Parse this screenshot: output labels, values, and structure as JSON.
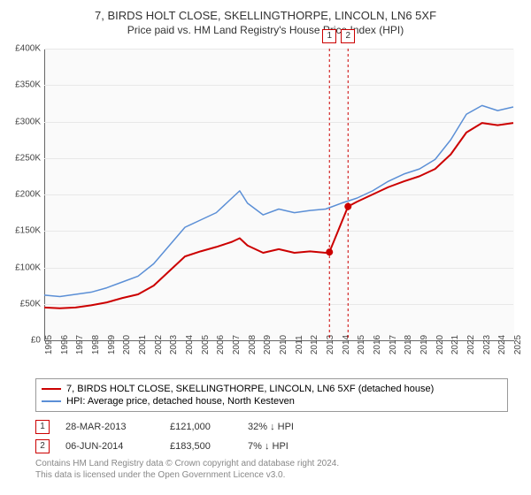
{
  "title_line1": "7, BIRDS HOLT CLOSE, SKELLINGTHORPE, LINCOLN, LN6 5XF",
  "title_line2": "Price paid vs. HM Land Registry's House Price Index (HPI)",
  "chart": {
    "type": "line",
    "background_color": "#fafafa",
    "grid_color": "#e8e8e8",
    "ylim": [
      0,
      400000
    ],
    "ytick_step": 50000,
    "yticks": [
      "£0",
      "£50K",
      "£100K",
      "£150K",
      "£200K",
      "£250K",
      "£300K",
      "£350K",
      "£400K"
    ],
    "xlim": [
      1995,
      2025
    ],
    "xticks": [
      1995,
      1996,
      1997,
      1998,
      1999,
      2000,
      2001,
      2002,
      2003,
      2004,
      2005,
      2006,
      2007,
      2008,
      2009,
      2010,
      2011,
      2012,
      2013,
      2014,
      2015,
      2016,
      2017,
      2018,
      2019,
      2020,
      2021,
      2022,
      2023,
      2024,
      2025
    ],
    "series": [
      {
        "id": "property",
        "label": "7, BIRDS HOLT CLOSE, SKELLINGTHORPE, LINCOLN, LN6 5XF (detached house)",
        "color": "#cc0000",
        "line_width": 2,
        "points": [
          [
            1995,
            45000
          ],
          [
            1996,
            44000
          ],
          [
            1997,
            45000
          ],
          [
            1998,
            48000
          ],
          [
            1999,
            52000
          ],
          [
            2000,
            58000
          ],
          [
            2001,
            63000
          ],
          [
            2002,
            75000
          ],
          [
            2003,
            95000
          ],
          [
            2004,
            115000
          ],
          [
            2005,
            122000
          ],
          [
            2006,
            128000
          ],
          [
            2007,
            135000
          ],
          [
            2007.5,
            140000
          ],
          [
            2008,
            130000
          ],
          [
            2009,
            120000
          ],
          [
            2010,
            125000
          ],
          [
            2011,
            120000
          ],
          [
            2012,
            122000
          ],
          [
            2013,
            120000
          ],
          [
            2013.24,
            121000
          ],
          [
            2014.43,
            183500
          ],
          [
            2015,
            190000
          ],
          [
            2016,
            200000
          ],
          [
            2017,
            210000
          ],
          [
            2018,
            218000
          ],
          [
            2019,
            225000
          ],
          [
            2020,
            235000
          ],
          [
            2021,
            255000
          ],
          [
            2022,
            285000
          ],
          [
            2023,
            298000
          ],
          [
            2024,
            295000
          ],
          [
            2025,
            298000
          ]
        ]
      },
      {
        "id": "hpi",
        "label": "HPI: Average price, detached house, North Kesteven",
        "color": "#5b8fd6",
        "line_width": 1.5,
        "points": [
          [
            1995,
            62000
          ],
          [
            1996,
            60000
          ],
          [
            1997,
            63000
          ],
          [
            1998,
            66000
          ],
          [
            1999,
            72000
          ],
          [
            2000,
            80000
          ],
          [
            2001,
            88000
          ],
          [
            2002,
            105000
          ],
          [
            2003,
            130000
          ],
          [
            2004,
            155000
          ],
          [
            2005,
            165000
          ],
          [
            2006,
            175000
          ],
          [
            2007,
            195000
          ],
          [
            2007.5,
            205000
          ],
          [
            2008,
            188000
          ],
          [
            2009,
            172000
          ],
          [
            2010,
            180000
          ],
          [
            2011,
            175000
          ],
          [
            2012,
            178000
          ],
          [
            2013,
            180000
          ],
          [
            2014,
            188000
          ],
          [
            2015,
            195000
          ],
          [
            2016,
            205000
          ],
          [
            2017,
            218000
          ],
          [
            2018,
            228000
          ],
          [
            2019,
            235000
          ],
          [
            2020,
            248000
          ],
          [
            2021,
            275000
          ],
          [
            2022,
            310000
          ],
          [
            2023,
            322000
          ],
          [
            2024,
            315000
          ],
          [
            2025,
            320000
          ]
        ]
      }
    ],
    "sale_markers": [
      {
        "num": "1",
        "x": 2013.24,
        "y": 121000,
        "vline_color": "#cc0000"
      },
      {
        "num": "2",
        "x": 2014.43,
        "y": 183500,
        "vline_color": "#cc0000"
      }
    ]
  },
  "legend": {
    "rows": [
      {
        "color": "#cc0000",
        "label": "7, BIRDS HOLT CLOSE, SKELLINGTHORPE, LINCOLN, LN6 5XF (detached house)"
      },
      {
        "color": "#5b8fd6",
        "label": "HPI: Average price, detached house, North Kesteven"
      }
    ]
  },
  "sales_table": [
    {
      "num": "1",
      "date": "28-MAR-2013",
      "price": "£121,000",
      "pct": "32%",
      "arrow": "↓",
      "note": "HPI"
    },
    {
      "num": "2",
      "date": "06-JUN-2014",
      "price": "£183,500",
      "pct": "7%",
      "arrow": "↓",
      "note": "HPI"
    }
  ],
  "footer_line1": "Contains HM Land Registry data © Crown copyright and database right 2024.",
  "footer_line2": "This data is licensed under the Open Government Licence v3.0."
}
